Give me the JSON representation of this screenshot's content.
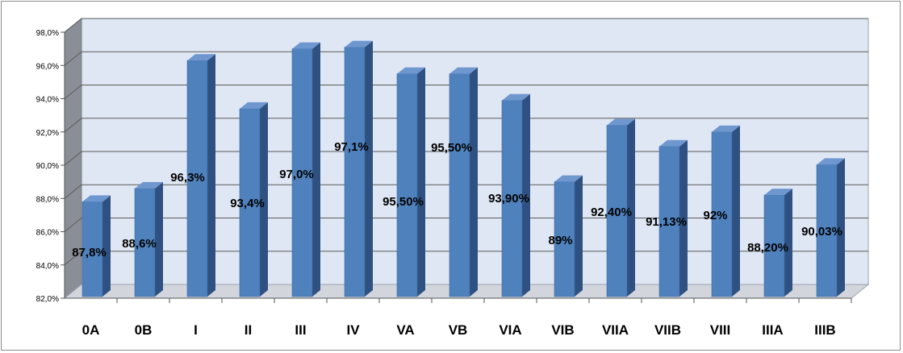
{
  "chart_data": {
    "type": "bar",
    "title": "",
    "xlabel": "",
    "ylabel": "",
    "categories": [
      "0A",
      "0B",
      "I",
      "II",
      "III",
      "IV",
      "VA",
      "VB",
      "VIA",
      "VIB",
      "VIIA",
      "VIIB",
      "VIII",
      "IIIA",
      "IIIB"
    ],
    "values": [
      87.8,
      88.6,
      96.3,
      93.4,
      97.0,
      97.1,
      95.5,
      95.5,
      93.9,
      89.0,
      92.4,
      91.13,
      92.0,
      88.2,
      90.03
    ],
    "data_labels": [
      "87,8%",
      "88,6%",
      "96,3%",
      "93,4%",
      "97,0%",
      "97,1%",
      "95,50%",
      "95,50%",
      "93,90%",
      "89%",
      "92,40%",
      "91,13%",
      "92%",
      "88,20%",
      "90,03%"
    ],
    "ylim": [
      82,
      98
    ],
    "yticks": [
      82,
      84,
      86,
      88,
      90,
      92,
      94,
      96,
      98
    ],
    "ytick_labels": [
      "82,0%",
      "84,0%",
      "86,0%",
      "88,0%",
      "90,0%",
      "92,0%",
      "94,0%",
      "96,0%",
      "98,0%"
    ],
    "grid": true,
    "legend": "none",
    "style": "3d-column",
    "colors": {
      "bar_front": "#4f81bd",
      "bar_side": "#2f5181",
      "bar_top": "#6f97cf",
      "wall": "#dfe7f4",
      "side_wall": "#8a8f97",
      "floor": "#d2d6dc",
      "gridline": "#5a5a5a"
    }
  }
}
